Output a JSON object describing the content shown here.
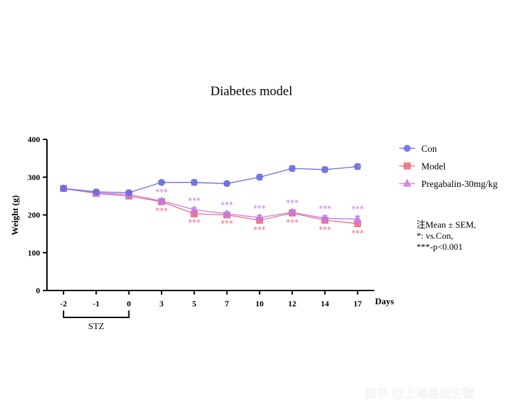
{
  "chart_data": {
    "type": "line",
    "title": "Diabetes model",
    "ylabel": "Weight (g)",
    "xlabel": "Days",
    "ylim": [
      0,
      400
    ],
    "yticks": [
      "0",
      "100",
      "200",
      "300",
      "400"
    ],
    "categories": [
      "-2",
      "-1",
      "0",
      "3",
      "5",
      "7",
      "10",
      "12",
      "14",
      "17"
    ],
    "bracket_label": "STZ",
    "bracket_range": [
      "-2",
      "0"
    ],
    "legend_position": "right",
    "series": [
      {
        "name": "Con",
        "marker": "circle",
        "color": "#6a6ae8",
        "values": [
          270,
          261,
          259,
          286,
          286,
          283,
          300,
          323,
          320,
          328
        ],
        "errors": [
          5,
          4,
          4,
          4,
          7,
          4,
          7,
          7,
          7,
          7
        ]
      },
      {
        "name": "Model",
        "marker": "square",
        "color": "#ef6b7b",
        "values": [
          270,
          257,
          250,
          235,
          203,
          200,
          186,
          205,
          186,
          177
        ],
        "errors": [
          4,
          4,
          4,
          6,
          5,
          5,
          7,
          7,
          7,
          7
        ]
      },
      {
        "name": "Pregabalin-30mg/kg",
        "marker": "triangle",
        "color": "#c07ae8",
        "values": [
          270,
          258,
          254,
          237,
          214,
          203,
          193,
          207,
          191,
          189
        ],
        "errors": [
          4,
          4,
          4,
          5,
          5,
          5,
          6,
          7,
          7,
          8
        ]
      }
    ],
    "significance": [
      {
        "day": "3",
        "above": "***",
        "below": "***"
      },
      {
        "day": "5",
        "above": "***",
        "below": "***"
      },
      {
        "day": "7",
        "above": "***",
        "below": "***"
      },
      {
        "day": "10",
        "above": "***",
        "below": "***"
      },
      {
        "day": "12",
        "above": "***",
        "below": "***"
      },
      {
        "day": "14",
        "above": "***",
        "below": "***"
      },
      {
        "day": "17",
        "above": "***",
        "below": "***"
      }
    ]
  },
  "notes": [
    "注Mean ± SEM,",
    "*: vs.Con,",
    "***-p<0.001"
  ],
  "watermark": "知乎 @上海易选生物"
}
